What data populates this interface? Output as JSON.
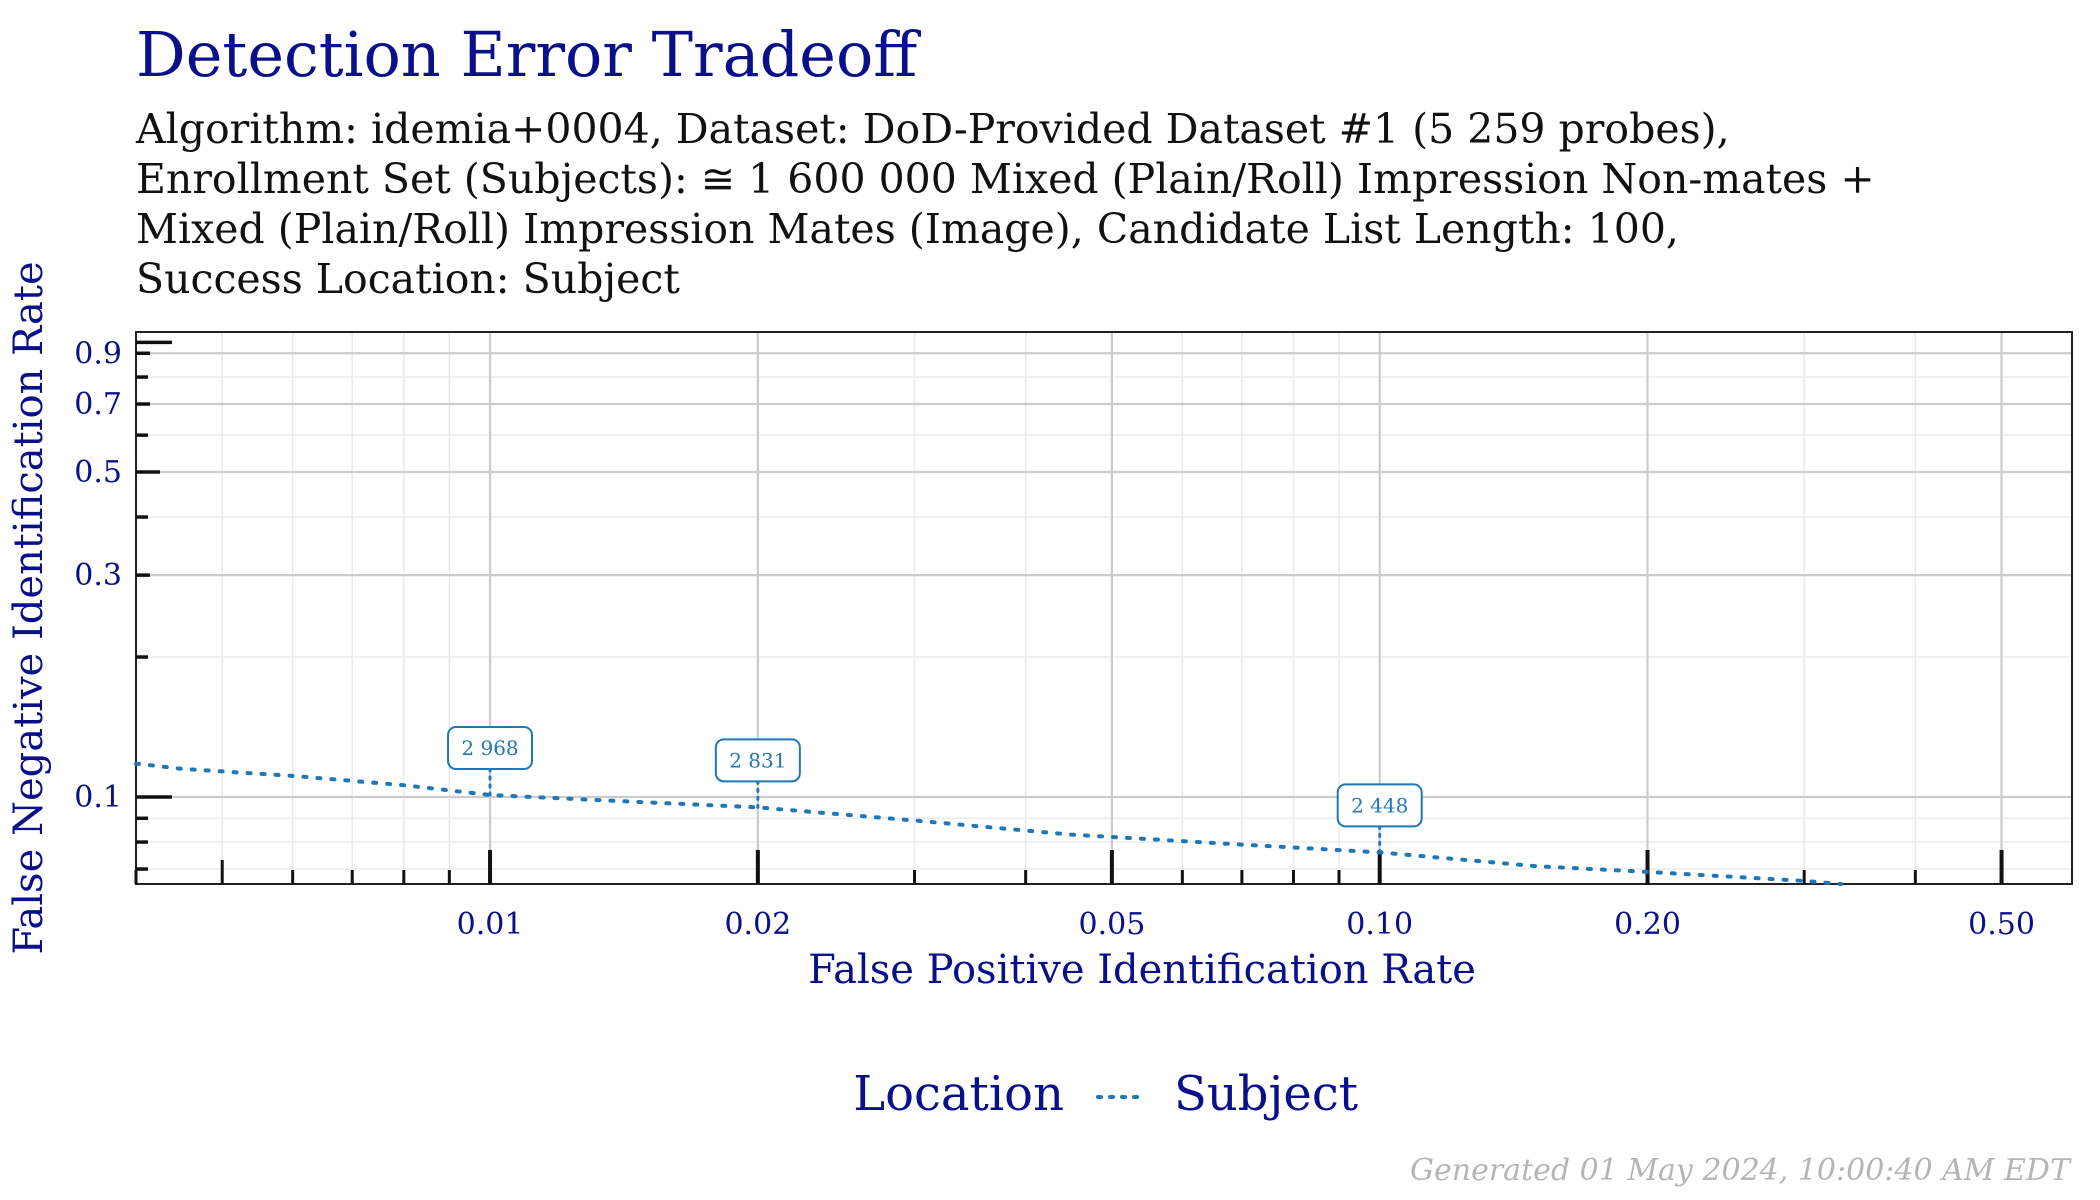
{
  "title": "Detection Error Tradeoff",
  "subtitle_lines": [
    "Algorithm: idemia+0004, Dataset: DoD-Provided Dataset #1 (5 259 probes),",
    "Enrollment Set (Subjects): ≅ 1 600 000 Mixed (Plain/Roll) Impression Non-mates +",
    "Mixed (Plain/Roll) Impression Mates (Image), Candidate List Length: 100,",
    "Success Location: Subject"
  ],
  "footer": "Generated 01 May 2024, 10:00:40 AM EDT",
  "colors": {
    "title": "#0a0f8a",
    "axis_text": "#0a0f8a",
    "series": "#1f77b4",
    "grid_major": "#cccccc",
    "grid_minor": "#ebebeb"
  },
  "chart_data": {
    "type": "line",
    "xlabel": "False Positive Identification Rate",
    "ylabel": "False Negative Identification Rate",
    "x_scale": "log",
    "y_scale": "log",
    "xlim": [
      0.004,
      0.6
    ],
    "ylim": [
      0.065,
      1.0
    ],
    "x_ticks": [
      {
        "value": 0.01,
        "label": "0.01"
      },
      {
        "value": 0.02,
        "label": "0.02"
      },
      {
        "value": 0.05,
        "label": "0.05"
      },
      {
        "value": 0.1,
        "label": "0.10"
      },
      {
        "value": 0.2,
        "label": "0.20"
      },
      {
        "value": 0.5,
        "label": "0.50"
      }
    ],
    "y_ticks": [
      {
        "value": 0.1,
        "label": "0.1"
      },
      {
        "value": 0.3,
        "label": "0.3"
      },
      {
        "value": 0.5,
        "label": "0.5"
      },
      {
        "value": 0.7,
        "label": "0.7"
      },
      {
        "value": 0.9,
        "label": "0.9"
      }
    ],
    "grid": true,
    "legend": {
      "title": "Location",
      "position": "bottom"
    },
    "series": [
      {
        "name": "Subject",
        "style": "dotted",
        "x": [
          0.004,
          0.0045,
          0.006,
          0.008,
          0.01,
          0.014,
          0.02,
          0.03,
          0.045,
          0.07,
          0.1,
          0.15,
          0.2,
          0.3,
          0.33
        ],
        "y": [
          0.118,
          0.115,
          0.111,
          0.106,
          0.101,
          0.098,
          0.095,
          0.089,
          0.083,
          0.079,
          0.076,
          0.071,
          0.069,
          0.066,
          0.065
        ]
      }
    ],
    "annotations": [
      {
        "label": "2 968",
        "x": 0.01,
        "y": 0.101
      },
      {
        "label": "2 831",
        "x": 0.02,
        "y": 0.095
      },
      {
        "label": "2 448",
        "x": 0.1,
        "y": 0.076
      }
    ]
  }
}
